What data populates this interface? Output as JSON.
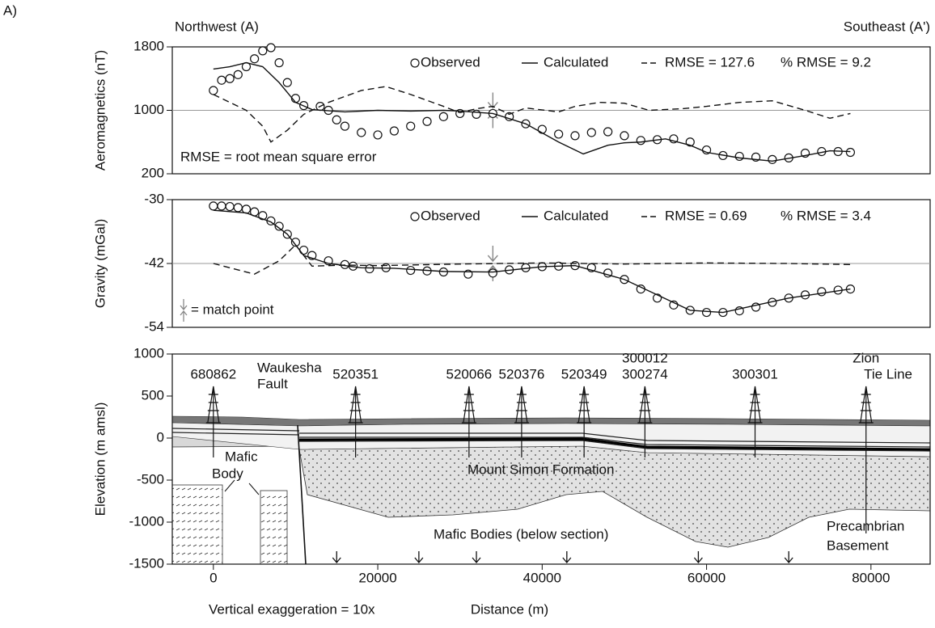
{
  "figure_label": "A)",
  "direction_left": "Northwest (A)",
  "direction_right": "Southeast (A')",
  "chart_data": [
    {
      "type": "line",
      "ylabel": "Aeromagnetics (nT)",
      "xlim": [
        -5000,
        87200
      ],
      "ylim": [
        200,
        1800
      ],
      "yticks": [
        200,
        1000,
        1800
      ],
      "reference": 1000,
      "match_point": 34000,
      "annotation": "RMSE = root mean square error",
      "extra_legend": "% RMSE = 9.2",
      "series": [
        {
          "name": "Observed",
          "style": "circle",
          "color": "#111111",
          "x": [
            0,
            1000,
            2000,
            3000,
            4000,
            5000,
            6000,
            7000,
            8000,
            9000,
            10000,
            11000,
            13000,
            14000,
            15000,
            16000,
            18000,
            20000,
            22000,
            24000,
            26000,
            28000,
            30000,
            32000,
            34000,
            36000,
            38000,
            40000,
            42000,
            44000,
            46000,
            48000,
            50000,
            52000,
            54000,
            56000,
            58000,
            60000,
            62000,
            64000,
            66000,
            68000,
            70000,
            72000,
            74000,
            76000,
            77500
          ],
          "values": [
            1250,
            1380,
            1400,
            1450,
            1550,
            1650,
            1750,
            1790,
            1600,
            1350,
            1150,
            1060,
            1050,
            1000,
            880,
            800,
            720,
            690,
            740,
            800,
            860,
            920,
            960,
            950,
            960,
            920,
            830,
            760,
            700,
            680,
            720,
            730,
            680,
            620,
            630,
            640,
            600,
            500,
            430,
            420,
            410,
            380,
            400,
            460,
            480,
            480,
            470
          ]
        },
        {
          "name": "Calculated",
          "style": "solid",
          "color": "#111111",
          "x": [
            0,
            2000,
            4000,
            6000,
            8000,
            10000,
            12000,
            16000,
            20000,
            24000,
            28000,
            30000,
            34000,
            38000,
            42000,
            45000,
            48000,
            50000,
            52000,
            55000,
            58000,
            60000,
            64000,
            68000,
            72000,
            75000,
            77500
          ],
          "values": [
            1520,
            1550,
            1600,
            1550,
            1350,
            1100,
            1010,
            980,
            1000,
            990,
            1000,
            990,
            960,
            830,
            600,
            450,
            560,
            590,
            600,
            640,
            560,
            470,
            400,
            360,
            430,
            490,
            480
          ]
        },
        {
          "name": "RMSE = 127.6",
          "style": "dashed",
          "color": "#111111",
          "x": [
            0,
            2000,
            4000,
            6000,
            7000,
            9000,
            11000,
            14000,
            18000,
            21000,
            24000,
            28000,
            30000,
            32000,
            34000,
            36000,
            38000,
            42000,
            44000,
            47000,
            50000,
            53000,
            57000,
            60000,
            64000,
            68000,
            72000,
            75000,
            77500
          ],
          "values": [
            1200,
            1100,
            1000,
            800,
            600,
            750,
            950,
            1100,
            1250,
            1300,
            1200,
            1050,
            970,
            1020,
            1050,
            950,
            1030,
            980,
            1050,
            1100,
            1090,
            1000,
            1020,
            1050,
            1100,
            1120,
            1000,
            900,
            960
          ]
        }
      ]
    },
    {
      "type": "line",
      "ylabel": "Gravity (mGal)",
      "xlim": [
        -5000,
        87200
      ],
      "ylim": [
        -54,
        -30
      ],
      "yticks": [
        -54,
        -42,
        -30
      ],
      "reference": -42,
      "match_point": 34000,
      "annotation": "= match point",
      "extra_legend": "% RMSE = 3.4",
      "series": [
        {
          "name": "Observed",
          "style": "circle",
          "color": "#111111",
          "x": [
            0,
            1000,
            2000,
            3000,
            4000,
            5000,
            6000,
            7000,
            8000,
            9000,
            10000,
            11000,
            12000,
            14000,
            16000,
            17000,
            19000,
            21000,
            24000,
            26000,
            28000,
            31000,
            34000,
            36000,
            38000,
            40000,
            42000,
            44000,
            46000,
            48000,
            50000,
            52000,
            54000,
            56000,
            58000,
            60000,
            62000,
            64000,
            66000,
            68000,
            70000,
            72000,
            74000,
            76000,
            77500
          ],
          "values": [
            -31.2,
            -31.2,
            -31.3,
            -31.5,
            -31.8,
            -32.3,
            -33,
            -34,
            -35,
            -36.5,
            -38,
            -39.5,
            -40.5,
            -41.5,
            -42.2,
            -42.5,
            -43,
            -42.8,
            -43.3,
            -43.4,
            -43.6,
            -44,
            -43.8,
            -43.2,
            -42.8,
            -42.6,
            -42.5,
            -42.4,
            -42.8,
            -43.8,
            -45,
            -46.8,
            -48.5,
            -49.8,
            -50.8,
            -51.2,
            -51.2,
            -50.9,
            -50.2,
            -49.3,
            -48.5,
            -47.9,
            -47.3,
            -47,
            -46.8
          ]
        },
        {
          "name": "Calculated",
          "style": "solid",
          "color": "#111111",
          "x": [
            0,
            4000,
            7000,
            9000,
            11000,
            14000,
            18000,
            22000,
            28000,
            34000,
            40000,
            44000,
            50000,
            58000,
            62000,
            70000,
            77500
          ],
          "values": [
            -32,
            -32.5,
            -34.2,
            -36.5,
            -40.5,
            -42,
            -42.8,
            -42.9,
            -43.5,
            -43.6,
            -42.6,
            -42.4,
            -45,
            -50.8,
            -51.2,
            -48.5,
            -46.8
          ]
        },
        {
          "name": "RMSE = 0.69",
          "style": "dashed",
          "color": "#111111",
          "x": [
            0,
            5000,
            8000,
            10000,
            12000,
            16000,
            20000,
            30000,
            40000,
            50000,
            60000,
            70000,
            77500
          ],
          "values": [
            -42,
            -44,
            -41.5,
            -38.5,
            -42.5,
            -42.3,
            -42.4,
            -42.1,
            -41.9,
            -42.1,
            -41.9,
            -42,
            -42.2
          ]
        }
      ]
    },
    {
      "type": "section",
      "ylabel": "Elevation (m amsl)",
      "xlabel": "Distance (m)",
      "note": "Vertical exaggeration = 10x",
      "xlim": [
        -5000,
        87200
      ],
      "xticks": [
        0,
        20000,
        40000,
        60000,
        80000
      ],
      "ylim": [
        -1500,
        1000
      ],
      "yticks": [
        -1500,
        -1000,
        -500,
        0,
        500,
        1000
      ],
      "wells": [
        {
          "label": [
            "680862"
          ],
          "x": 0
        },
        {
          "label": [
            "520351"
          ],
          "x": 17300
        },
        {
          "label": [
            "520066"
          ],
          "x": 31100
        },
        {
          "label": [
            "520376"
          ],
          "x": 37500
        },
        {
          "label": [
            "520349"
          ],
          "x": 45100
        },
        {
          "label": [
            "300012",
            "300274"
          ],
          "x": 52500
        },
        {
          "label": [
            "300301"
          ],
          "x": 65900
        },
        {
          "label": [
            "Zion",
            "Tie Line"
          ],
          "x": 79400
        }
      ],
      "fault_label": [
        "Waukesha",
        "Fault"
      ],
      "mafic_label": [
        "Mafic",
        "Body"
      ],
      "formation_label": "Mount Simon Formation",
      "bodies_label": "Mafic Bodies (below section)",
      "basement_label": [
        "Precambrian",
        "Basement"
      ],
      "arrows_x": [
        15000,
        25000,
        32000,
        43000,
        59000,
        70000
      ]
    }
  ]
}
